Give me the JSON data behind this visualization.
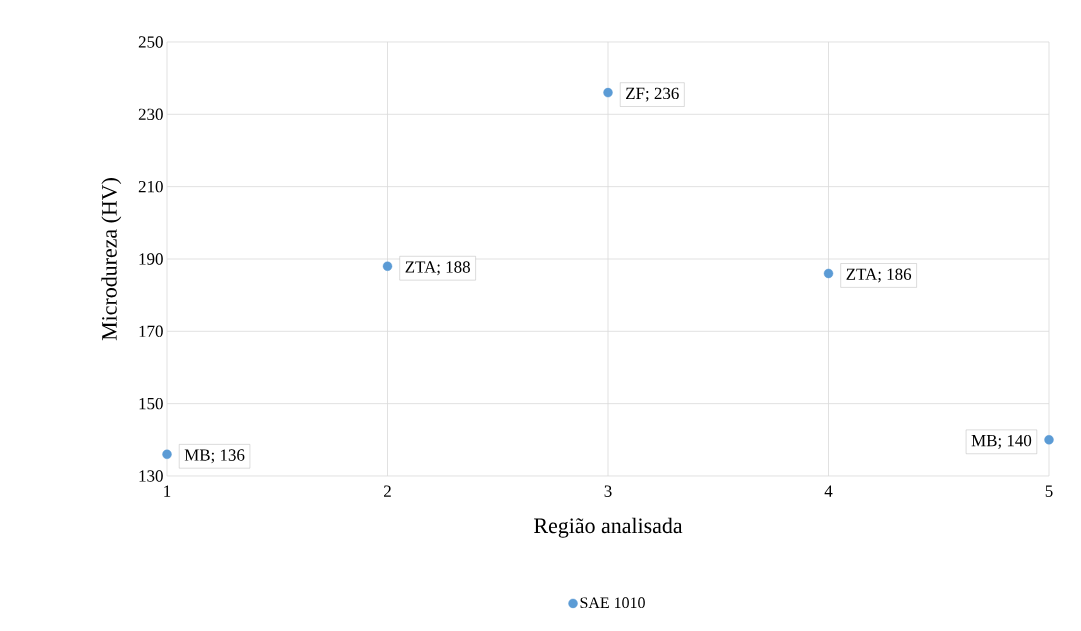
{
  "chart_data": {
    "type": "scatter",
    "xlabel": "Região analisada",
    "ylabel": "Microdureza  (HV)",
    "x": [
      1,
      2,
      3,
      4,
      5
    ],
    "series": [
      {
        "name": "SAE 1010",
        "color": "#5b9bd5",
        "values": [
          136,
          188,
          236,
          186,
          140
        ],
        "value_labels": [
          "MB; 136",
          "ZTA; 188",
          "ZF; 236",
          "ZTA; 186",
          "MB; 140"
        ]
      }
    ],
    "xlim": [
      1,
      5
    ],
    "xticks": [
      1,
      2,
      3,
      4,
      5
    ],
    "ylim": [
      130,
      250
    ],
    "yticks": [
      130,
      150,
      170,
      190,
      210,
      230,
      250
    ],
    "grid": true,
    "legend": "bottom",
    "marker": "circle"
  }
}
